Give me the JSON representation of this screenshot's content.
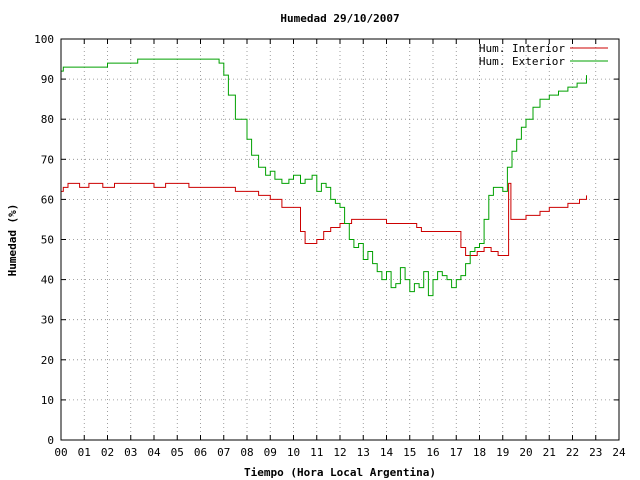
{
  "chart_data": {
    "type": "line",
    "title": "Humedad 29/10/2007",
    "xlabel": "Tiempo (Hora Local Argentina)",
    "ylabel": "Humedad (%)",
    "xlim": [
      0,
      24
    ],
    "ylim": [
      0,
      100
    ],
    "grid": true,
    "legend_position": "top-right",
    "x_ticks": [
      "00",
      "01",
      "02",
      "03",
      "04",
      "05",
      "06",
      "07",
      "08",
      "09",
      "10",
      "11",
      "12",
      "13",
      "14",
      "15",
      "16",
      "17",
      "18",
      "19",
      "20",
      "21",
      "22",
      "23",
      "24"
    ],
    "y_ticks": [
      "0",
      "10",
      "20",
      "30",
      "40",
      "50",
      "60",
      "70",
      "80",
      "90",
      "100"
    ],
    "series": [
      {
        "name": "Hum. Interior",
        "color": "#cc0000",
        "x": [
          0,
          0.1,
          0.3,
          0.5,
          0.8,
          1.0,
          1.2,
          1.4,
          1.6,
          1.8,
          2.0,
          2.3,
          2.6,
          2.8,
          3.0,
          3.5,
          4.0,
          4.5,
          5.0,
          5.5,
          6.0,
          6.5,
          7.0,
          7.5,
          8.0,
          8.5,
          9.0,
          9.5,
          10.0,
          10.3,
          10.5,
          10.8,
          11.0,
          11.3,
          11.6,
          12.0,
          12.5,
          13.0,
          13.5,
          14.0,
          14.5,
          15.0,
          15.3,
          15.5,
          16.0,
          16.5,
          17.0,
          17.2,
          17.4,
          17.6,
          17.9,
          18.2,
          18.5,
          18.8,
          19.0,
          19.2,
          19.25,
          19.35,
          19.5,
          19.8,
          20.0,
          20.3,
          20.6,
          21.0,
          21.5,
          21.8,
          22.0,
          22.3,
          22.6
        ],
        "y": [
          62,
          63,
          64,
          64,
          63,
          63,
          64,
          64,
          64,
          63,
          63,
          64,
          64,
          64,
          64,
          64,
          63,
          64,
          64,
          63,
          63,
          63,
          63,
          62,
          62,
          61,
          60,
          58,
          58,
          52,
          49,
          49,
          50,
          52,
          53,
          54,
          55,
          55,
          55,
          54,
          54,
          54,
          53,
          52,
          52,
          52,
          52,
          48,
          46,
          46,
          47,
          48,
          47,
          46,
          46,
          46,
          64,
          55,
          55,
          55,
          56,
          56,
          57,
          58,
          58,
          59,
          59,
          60,
          61
        ]
      },
      {
        "name": "Hum. Exterior",
        "color": "#00a000",
        "x": [
          0,
          0.1,
          0.3,
          0.6,
          1.0,
          1.5,
          2.0,
          2.5,
          3.0,
          3.3,
          3.5,
          4.0,
          4.5,
          5.0,
          5.5,
          6.0,
          6.5,
          6.8,
          7.0,
          7.2,
          7.5,
          7.8,
          8.0,
          8.2,
          8.5,
          8.8,
          9.0,
          9.2,
          9.5,
          9.8,
          10.0,
          10.3,
          10.5,
          10.8,
          11.0,
          11.2,
          11.4,
          11.6,
          11.8,
          12.0,
          12.2,
          12.4,
          12.6,
          12.8,
          13.0,
          13.2,
          13.4,
          13.6,
          13.8,
          14.0,
          14.2,
          14.4,
          14.6,
          14.8,
          15.0,
          15.2,
          15.4,
          15.6,
          15.8,
          16.0,
          16.2,
          16.4,
          16.6,
          16.8,
          17.0,
          17.2,
          17.4,
          17.6,
          17.8,
          18.0,
          18.2,
          18.4,
          18.6,
          18.8,
          19.0,
          19.2,
          19.4,
          19.6,
          19.8,
          20.0,
          20.3,
          20.6,
          21.0,
          21.4,
          21.8,
          22.2,
          22.6
        ],
        "y": [
          92,
          93,
          93,
          93,
          93,
          93,
          94,
          94,
          94,
          95,
          95,
          95,
          95,
          95,
          95,
          95,
          95,
          94,
          91,
          86,
          80,
          80,
          75,
          71,
          68,
          66,
          67,
          65,
          64,
          65,
          66,
          64,
          65,
          66,
          62,
          64,
          63,
          60,
          59,
          58,
          54,
          50,
          48,
          49,
          45,
          47,
          44,
          42,
          40,
          42,
          38,
          39,
          43,
          40,
          37,
          39,
          38,
          42,
          36,
          40,
          42,
          41,
          40,
          38,
          40,
          41,
          44,
          47,
          48,
          49,
          55,
          61,
          63,
          63,
          62,
          68,
          72,
          75,
          78,
          80,
          83,
          85,
          86,
          87,
          88,
          89,
          91
        ]
      }
    ]
  }
}
